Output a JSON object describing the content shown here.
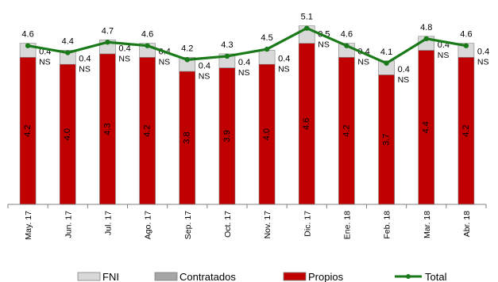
{
  "chart_data": {
    "type": "bar",
    "stacked": true,
    "categories": [
      "May. 17",
      "Jun. 17",
      "Jul. 17",
      "Ago. 17",
      "Sep. 17",
      "Oct. 17",
      "Nov. 17",
      "Dic. 17",
      "Ene. 18",
      "Feb. 18",
      "Mar. 18",
      "Abr. 18"
    ],
    "series": [
      {
        "name": "Propios",
        "kind": "bar",
        "color": "#c00000",
        "values": [
          4.2,
          4.0,
          4.3,
          4.2,
          3.8,
          3.9,
          4.0,
          4.6,
          4.2,
          3.7,
          4.4,
          4.2
        ],
        "labels": [
          "4.2",
          "4.0",
          "4.3",
          "4.2",
          "3.8",
          "3.9",
          "4.0",
          "4.6",
          "4.2",
          "3.7",
          "4.4",
          "4.2"
        ]
      },
      {
        "name": "Contratados",
        "kind": "bar",
        "color": "#a6a6a6",
        "values": [
          0,
          0,
          0,
          0,
          0,
          0,
          0,
          0,
          0,
          0,
          0,
          0
        ],
        "labels": [
          "NS",
          "NS",
          "NS",
          "NS",
          "NS",
          "NS",
          "NS",
          "NS",
          "NS",
          "NS",
          "NS",
          "NS"
        ]
      },
      {
        "name": "FNI",
        "kind": "bar",
        "color": "#d9d9d9",
        "values": [
          0.4,
          0.4,
          0.4,
          0.4,
          0.4,
          0.4,
          0.4,
          0.5,
          0.4,
          0.4,
          0.4,
          0.4
        ],
        "labels": [
          "0.4",
          "0.4",
          "0.4",
          "0.4",
          "0.4",
          "0.4",
          "0.4",
          "0.5",
          "0.4",
          "0.4",
          "0.4",
          "0.4"
        ]
      },
      {
        "name": "Total",
        "kind": "line",
        "color": "#1a7a1a",
        "values": [
          4.6,
          4.4,
          4.7,
          4.6,
          4.2,
          4.3,
          4.5,
          5.1,
          4.6,
          4.1,
          4.8,
          4.6
        ],
        "labels": [
          "4.6",
          "4.4",
          "4.7",
          "4.6",
          "4.2",
          "4.3",
          "4.5",
          "5.1",
          "4.6",
          "4.1",
          "4.8",
          "4.6"
        ]
      }
    ],
    "legend": {
      "position": "bottom",
      "order": [
        "FNI",
        "Contratados",
        "Propios",
        "Total"
      ]
    },
    "ylim": [
      0,
      5.2
    ],
    "grid": false,
    "y_axis_visible": false
  }
}
